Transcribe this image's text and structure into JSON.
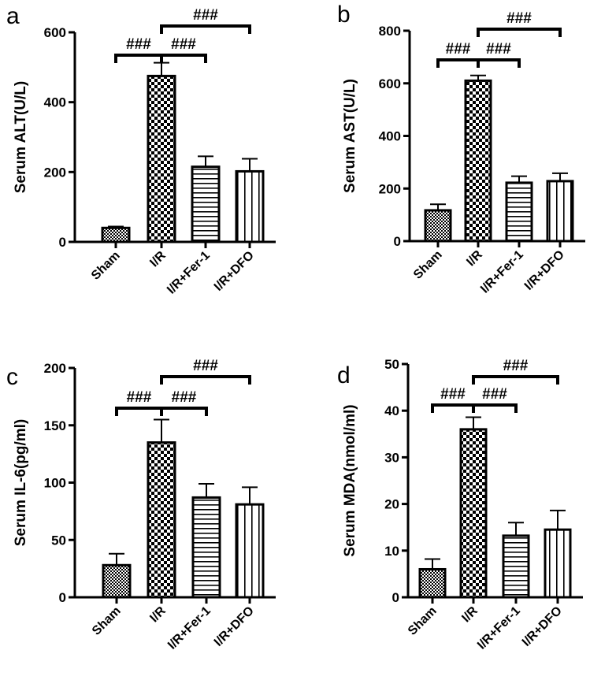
{
  "chart_data": [
    {
      "type": "bar",
      "panel": "a",
      "ylabel": "Serum ALT(U/L)",
      "ylim": [
        0,
        600
      ],
      "yticks": [
        0,
        200,
        400,
        600
      ],
      "categories": [
        "Sham",
        "I/R",
        "I/R+Fer-1",
        "I/R+DFO"
      ],
      "values": [
        40,
        475,
        215,
        202
      ],
      "errors": [
        4,
        38,
        30,
        36
      ],
      "patterns": [
        "fine-check",
        "check",
        "hlines",
        "vlines"
      ],
      "significance": [
        {
          "label": "###",
          "from": 0,
          "to": 1
        },
        {
          "label": "###",
          "from": 1,
          "to": 2
        },
        {
          "label": "###",
          "from": 1,
          "to": 3
        }
      ]
    },
    {
      "type": "bar",
      "panel": "b",
      "ylabel": "Serum AST(U/L)",
      "ylim": [
        0,
        800
      ],
      "yticks": [
        0,
        200,
        400,
        600,
        800
      ],
      "categories": [
        "Sham",
        "I/R",
        "I/R+Fer-1",
        "I/R+DFO"
      ],
      "values": [
        117,
        610,
        222,
        228
      ],
      "errors": [
        23,
        20,
        25,
        30
      ],
      "patterns": [
        "fine-check",
        "check",
        "hlines",
        "vlines"
      ],
      "significance": [
        {
          "label": "###",
          "from": 0,
          "to": 1
        },
        {
          "label": "###",
          "from": 1,
          "to": 2
        },
        {
          "label": "###",
          "from": 1,
          "to": 3
        }
      ]
    },
    {
      "type": "bar",
      "panel": "c",
      "ylabel": "Serum IL-6(pg/ml)",
      "ylim": [
        0,
        200
      ],
      "yticks": [
        0,
        50,
        100,
        150,
        200
      ],
      "categories": [
        "Sham",
        "I/R",
        "I/R+Fer-1",
        "I/R+DFO"
      ],
      "values": [
        28,
        135,
        87,
        81
      ],
      "errors": [
        10,
        20,
        12,
        15
      ],
      "patterns": [
        "fine-check",
        "check",
        "hlines",
        "vlines"
      ],
      "significance": [
        {
          "label": "###",
          "from": 0,
          "to": 1
        },
        {
          "label": "###",
          "from": 1,
          "to": 2
        },
        {
          "label": "###",
          "from": 1,
          "to": 3
        }
      ]
    },
    {
      "type": "bar",
      "panel": "d",
      "ylabel": "Serum MDA(nmol/ml)",
      "ylim": [
        0,
        50
      ],
      "yticks": [
        0,
        10,
        20,
        30,
        40,
        50
      ],
      "categories": [
        "Sham",
        "I/R",
        "I/R+Fer-1",
        "I/R+DFO"
      ],
      "values": [
        6,
        36,
        13.2,
        14.5
      ],
      "errors": [
        2.2,
        2.6,
        2.8,
        4.1
      ],
      "patterns": [
        "fine-check",
        "check",
        "hlines",
        "vlines"
      ],
      "significance": [
        {
          "label": "###",
          "from": 0,
          "to": 1
        },
        {
          "label": "###",
          "from": 1,
          "to": 2
        },
        {
          "label": "###",
          "from": 1,
          "to": 3
        }
      ]
    }
  ]
}
